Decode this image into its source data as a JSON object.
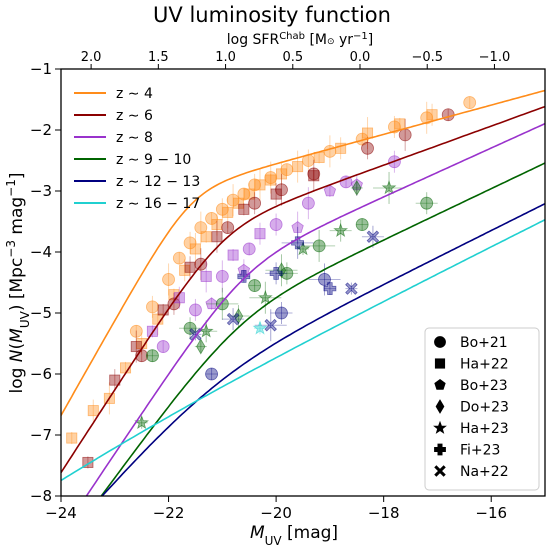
{
  "chart_data": {
    "type": "line",
    "title": "UV luminosity function",
    "xlabel": "M_UV [mag]",
    "ylabel": "log N(M_UV) [Mpc^-3 mag^-1]",
    "top_axis_label": "log SFR^Chab [M⊙ yr^-1]",
    "xlim": [
      -24,
      -15
    ],
    "ylim": [
      -8,
      -1
    ],
    "x_ticks": [
      "−24",
      "−22",
      "−20",
      "−18",
      "−16"
    ],
    "x_tick_values": [
      -24,
      -22,
      -20,
      -18,
      -16
    ],
    "y_ticks": [
      "−8",
      "−7",
      "−6",
      "−5",
      "−4",
      "−3",
      "−2",
      "−1"
    ],
    "y_tick_values": [
      -8,
      -7,
      -6,
      -5,
      -4,
      -3,
      -2,
      -1
    ],
    "top_ticks": [
      "2.0",
      "1.5",
      "1.0",
      "0.5",
      "0.0",
      "−0.5",
      "−1.0"
    ],
    "top_tick_mag": [
      -23.44,
      -22.19,
      -20.94,
      -19.69,
      -18.44,
      -17.19,
      -15.94
    ],
    "grid": false,
    "legend_position": "upper-left",
    "series": [
      {
        "name": "z ∼ 4",
        "color": "#ff8c1a",
        "phi_star": -2.9,
        "m_star": -21.6,
        "alpha": -1.6,
        "beta": -4.9
      },
      {
        "name": "z ∼ 6",
        "color": "#8b0000",
        "phi_star": -3.5,
        "m_star": -21.0,
        "alpha": -1.8,
        "beta": -4.4
      },
      {
        "name": "z ∼ 8",
        "color": "#9932cc",
        "phi_star": -4.1,
        "m_star": -20.6,
        "alpha": -2.0,
        "beta": -4.3
      },
      {
        "name": "z ∼ 9 − 10",
        "color": "#006400",
        "phi_star": -4.9,
        "m_star": -20.7,
        "alpha": -2.05,
        "beta": -4.0
      },
      {
        "name": "z ∼ 12 − 13",
        "color": "#000080",
        "phi_star": -5.9,
        "m_star": -21.2,
        "alpha": -2.1,
        "beta": -3.5
      },
      {
        "name": "z ∼ 16 − 17",
        "color": "#20d0d0",
        "phi_star": -7.3,
        "m_star": -23.8,
        "alpha": -2.1,
        "beta": -2.6
      }
    ],
    "points": [
      {
        "series": 0,
        "marker": "circle",
        "data": [
          [
            -22.6,
            -5.3
          ],
          [
            -22.3,
            -4.9
          ],
          [
            -22.0,
            -4.45
          ],
          [
            -21.8,
            -4.1
          ],
          [
            -21.6,
            -3.85
          ],
          [
            -21.4,
            -3.6
          ],
          [
            -21.2,
            -3.45
          ],
          [
            -21.0,
            -3.3
          ],
          [
            -20.8,
            -3.15
          ],
          [
            -20.6,
            -3.05
          ],
          [
            -20.4,
            -2.9
          ],
          [
            -20.1,
            -2.78
          ],
          [
            -19.8,
            -2.65
          ],
          [
            -19.4,
            -2.5
          ],
          [
            -19.0,
            -2.35
          ],
          [
            -18.4,
            -2.15
          ],
          [
            -17.8,
            -1.95
          ],
          [
            -17.2,
            -1.8
          ],
          [
            -16.4,
            -1.55
          ]
        ]
      },
      {
        "series": 0,
        "marker": "square",
        "data": [
          [
            -23.8,
            -7.05
          ],
          [
            -23.4,
            -6.6
          ],
          [
            -23.1,
            -6.4
          ],
          [
            -22.8,
            -5.9
          ],
          [
            -22.5,
            -5.5
          ],
          [
            -22.2,
            -5.1
          ],
          [
            -21.9,
            -4.7
          ],
          [
            -21.7,
            -4.3
          ],
          [
            -21.5,
            -3.95
          ],
          [
            -21.3,
            -3.75
          ],
          [
            -21.1,
            -3.55
          ],
          [
            -20.9,
            -3.35
          ],
          [
            -20.7,
            -3.2
          ],
          [
            -20.5,
            -3.05
          ],
          [
            -20.3,
            -2.9
          ],
          [
            -20.1,
            -2.82
          ],
          [
            -19.9,
            -2.72
          ],
          [
            -19.6,
            -2.6
          ],
          [
            -19.2,
            -2.45
          ],
          [
            -18.8,
            -2.3
          ],
          [
            -18.3,
            -2.05
          ],
          [
            -17.7,
            -1.9
          ],
          [
            -17.1,
            -1.75
          ]
        ]
      },
      {
        "series": 1,
        "marker": "circle",
        "data": [
          [
            -22.5,
            -5.7
          ],
          [
            -21.9,
            -4.85
          ],
          [
            -21.4,
            -4.2
          ],
          [
            -20.9,
            -3.6
          ],
          [
            -20.4,
            -3.2
          ],
          [
            -19.9,
            -2.98
          ],
          [
            -19.3,
            -2.72
          ],
          [
            -18.3,
            -2.3
          ],
          [
            -17.6,
            -2.08
          ],
          [
            -16.8,
            -1.75
          ]
        ]
      },
      {
        "series": 1,
        "marker": "square",
        "data": [
          [
            -23.5,
            -7.45
          ],
          [
            -23.0,
            -6.1
          ],
          [
            -22.6,
            -5.55
          ],
          [
            -22.1,
            -4.95
          ],
          [
            -21.6,
            -4.25
          ],
          [
            -21.1,
            -3.75
          ],
          [
            -20.6,
            -3.3
          ],
          [
            -20.0,
            -3.05
          ],
          [
            -19.3,
            -2.75
          ]
        ]
      },
      {
        "series": 2,
        "marker": "circle",
        "data": [
          [
            -22.1,
            -5.55
          ],
          [
            -21.5,
            -4.95
          ],
          [
            -21.0,
            -4.4
          ],
          [
            -20.5,
            -3.95
          ],
          [
            -20.0,
            -3.55
          ],
          [
            -19.4,
            -3.2
          ],
          [
            -18.7,
            -2.85
          ],
          [
            -17.8,
            -2.52
          ]
        ]
      },
      {
        "series": 2,
        "marker": "square",
        "data": [
          [
            -22.3,
            -5.3
          ],
          [
            -21.8,
            -4.75
          ],
          [
            -21.3,
            -4.4
          ],
          [
            -20.8,
            -4.05
          ],
          [
            -20.3,
            -3.7
          ]
        ]
      },
      {
        "series": 2,
        "marker": "pentagon",
        "data": [
          [
            -21.2,
            -4.85
          ],
          [
            -20.6,
            -4.3
          ],
          [
            -19.6,
            -3.6
          ],
          [
            -19.0,
            -3.0
          ],
          [
            -18.5,
            -2.9
          ]
        ]
      },
      {
        "series": 3,
        "marker": "circle",
        "data": [
          [
            -22.3,
            -5.7
          ],
          [
            -21.6,
            -5.25
          ],
          [
            -21.0,
            -4.85
          ],
          [
            -20.4,
            -4.55
          ],
          [
            -19.8,
            -4.35
          ],
          [
            -19.2,
            -3.9
          ],
          [
            -18.4,
            -3.55
          ],
          [
            -17.2,
            -3.2
          ]
        ]
      },
      {
        "series": 3,
        "marker": "diamond",
        "data": [
          [
            -21.4,
            -5.55
          ],
          [
            -20.7,
            -5.05
          ],
          [
            -19.9,
            -4.3
          ],
          [
            -18.5,
            -2.95
          ]
        ]
      },
      {
        "series": 3,
        "marker": "star",
        "data": [
          [
            -22.5,
            -6.8
          ],
          [
            -21.3,
            -5.3
          ],
          [
            -20.2,
            -4.75
          ],
          [
            -19.5,
            -3.95
          ],
          [
            -18.8,
            -3.65
          ],
          [
            -17.9,
            -2.95
          ]
        ]
      },
      {
        "series": 4,
        "marker": "circle",
        "data": [
          [
            -21.2,
            -6.0
          ],
          [
            -19.9,
            -5.0
          ],
          [
            -19.1,
            -4.45
          ]
        ]
      },
      {
        "series": 4,
        "marker": "plus",
        "data": [
          [
            -20.6,
            -4.4
          ],
          [
            -20.0,
            -4.35
          ],
          [
            -19.6,
            -3.85
          ],
          [
            -19.0,
            -4.6
          ]
        ]
      },
      {
        "series": 4,
        "marker": "cross",
        "data": [
          [
            -21.5,
            -5.35
          ],
          [
            -20.8,
            -5.1
          ],
          [
            -20.1,
            -5.2
          ],
          [
            -18.6,
            -4.6
          ],
          [
            -18.2,
            -3.75
          ]
        ]
      },
      {
        "series": 5,
        "marker": "star",
        "data": [
          [
            -20.3,
            -5.25
          ]
        ]
      }
    ]
  },
  "legend_markers": [
    {
      "label": "Bo+21",
      "marker": "circle"
    },
    {
      "label": "Ha+22",
      "marker": "square"
    },
    {
      "label": "Bo+23",
      "marker": "pentagon"
    },
    {
      "label": "Do+23",
      "marker": "diamond"
    },
    {
      "label": "Ha+23",
      "marker": "star"
    },
    {
      "label": "Fi+23",
      "marker": "plus"
    },
    {
      "label": "Na+22",
      "marker": "cross"
    }
  ]
}
